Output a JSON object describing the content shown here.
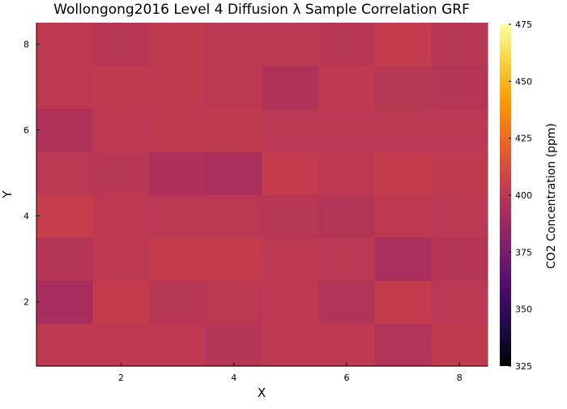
{
  "chart_data": {
    "type": "heatmap",
    "title": "Wollongong2016 Level 4 Diffusion λ Sample Correlation GRF",
    "xlabel": "X",
    "ylabel": "Y",
    "x_centers": [
      1,
      2,
      3,
      4,
      5,
      6,
      7,
      8
    ],
    "y_centers": [
      1,
      2,
      3,
      4,
      5,
      6,
      7,
      8
    ],
    "xlim": [
      0.5,
      8.5
    ],
    "ylim": [
      0.5,
      8.5
    ],
    "xticks": [
      2,
      4,
      6,
      8
    ],
    "yticks": [
      2,
      4,
      6,
      8
    ],
    "z_rows_bottom_to_top": [
      [
        401,
        401,
        401,
        398,
        401,
        401,
        397,
        402
      ],
      [
        393,
        403,
        399,
        400,
        401,
        397,
        403,
        400
      ],
      [
        398,
        401,
        403,
        403,
        401,
        400,
        394,
        398
      ],
      [
        404,
        401,
        400,
        400,
        399,
        398,
        401,
        400
      ],
      [
        400,
        399,
        395,
        394,
        403,
        401,
        403,
        402
      ],
      [
        396,
        401,
        402,
        402,
        400,
        400,
        400,
        400
      ],
      [
        401,
        402,
        402,
        400,
        396,
        401,
        399,
        398
      ],
      [
        401,
        399,
        402,
        400,
        400,
        399,
        403,
        399
      ]
    ],
    "colorbar": {
      "label": "CO2 Concentration (ppm)",
      "range": [
        325,
        475
      ],
      "ticks": [
        325,
        350,
        375,
        400,
        425,
        450,
        475
      ],
      "colormap": "inferno",
      "stops": [
        "#000004",
        "#1b0c41",
        "#4a0c6b",
        "#781c6d",
        "#a52c60",
        "#cf4446",
        "#ed6925",
        "#fb9b06",
        "#f7d13d",
        "#fcffa4"
      ]
    },
    "grid": false,
    "legend": "none"
  }
}
